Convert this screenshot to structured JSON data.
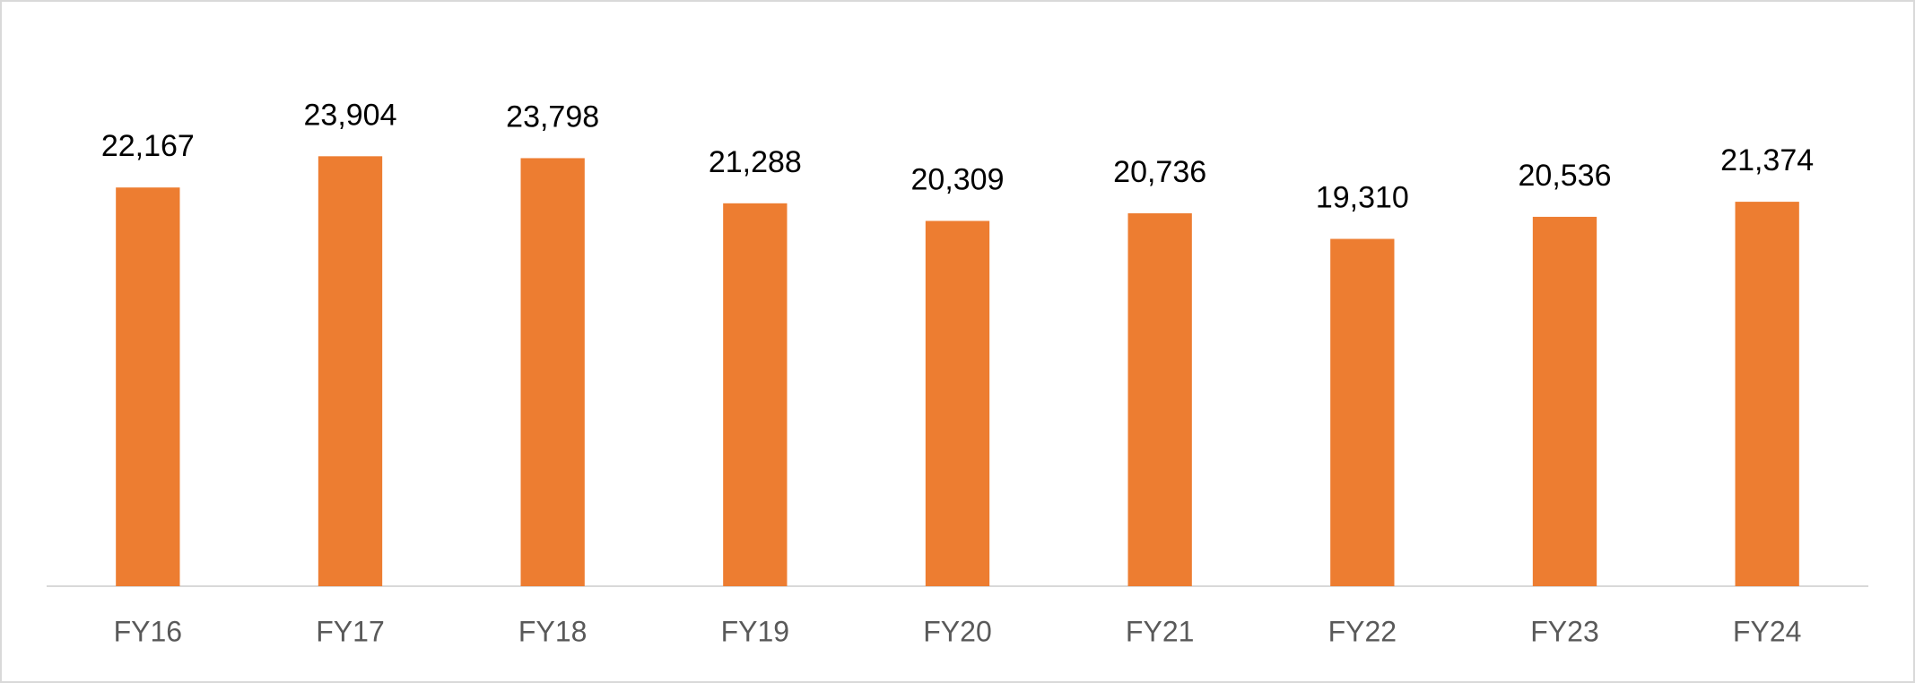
{
  "chart_data": {
    "type": "bar",
    "categories": [
      "FY16",
      "FY17",
      "FY18",
      "FY19",
      "FY20",
      "FY21",
      "FY22",
      "FY23",
      "FY24"
    ],
    "values": [
      22167,
      23904,
      23798,
      21288,
      20309,
      20736,
      19310,
      20536,
      21374
    ],
    "value_labels": [
      "22,167",
      "23,904",
      "23,798",
      "21,288",
      "20,309",
      "20,736",
      "19,310",
      "20,536",
      "21,374"
    ],
    "color": "#ed7d31",
    "ylim": [
      0,
      30000
    ]
  }
}
